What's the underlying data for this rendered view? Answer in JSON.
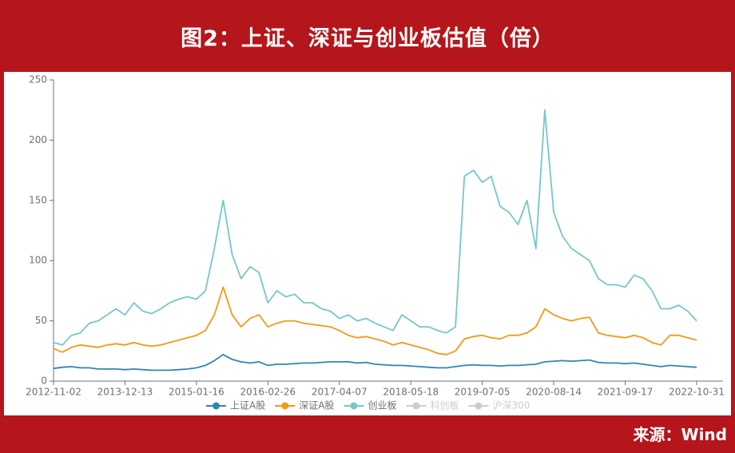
{
  "chart_data": {
    "type": "line",
    "title": "图2：上证、深证与创业板估值（倍）",
    "source": "来源：Wind",
    "categories": [
      "2012-11-02",
      null,
      null,
      null,
      null,
      null,
      null,
      null,
      "2013-12-13",
      null,
      null,
      null,
      null,
      null,
      null,
      null,
      "2015-01-16",
      null,
      null,
      null,
      null,
      null,
      null,
      null,
      "2016-02-26",
      null,
      null,
      null,
      null,
      null,
      null,
      null,
      "2017-04-07",
      null,
      null,
      null,
      null,
      null,
      null,
      null,
      "2018-05-18",
      null,
      null,
      null,
      null,
      null,
      null,
      null,
      "2019-07-05",
      null,
      null,
      null,
      null,
      null,
      null,
      null,
      "2020-08-14",
      null,
      null,
      null,
      null,
      null,
      null,
      null,
      "2021-09-17",
      null,
      null,
      null,
      null,
      null,
      null,
      null,
      "2022-10-31"
    ],
    "series": [
      {
        "name": "上证A股",
        "color": "#2f86b4",
        "values": [
          10.5,
          11.5,
          12,
          11,
          11,
          10,
          10,
          10,
          9.5,
          10,
          9.5,
          9,
          9,
          9,
          9.5,
          10,
          11,
          13,
          17,
          22,
          18,
          16,
          15,
          16,
          13,
          14,
          14,
          14.5,
          15,
          15,
          15.5,
          16,
          16,
          16,
          15,
          15.5,
          14,
          13.5,
          13,
          13,
          12.5,
          12,
          11.5,
          11,
          11,
          12,
          13,
          13.5,
          13,
          13,
          12.5,
          13,
          13,
          13.5,
          14,
          16,
          16.5,
          17,
          16.5,
          17,
          17.5,
          15.5,
          15,
          15,
          14.5,
          15,
          14,
          13,
          12,
          13,
          12.5,
          12,
          11.5
        ]
      },
      {
        "name": "深证A股",
        "color": "#f39a16",
        "values": [
          27,
          24,
          28,
          30,
          29,
          28,
          30,
          31,
          30,
          32,
          30,
          29,
          30,
          32,
          34,
          36,
          38,
          42,
          55,
          78,
          55,
          45,
          52,
          55,
          45,
          48,
          50,
          50,
          48,
          47,
          46,
          45,
          42,
          38,
          36,
          37,
          35,
          33,
          30,
          32,
          30,
          28,
          26,
          23,
          22,
          25,
          35,
          37,
          38,
          36,
          35,
          38,
          38,
          40,
          45,
          60,
          55,
          52,
          50,
          52,
          53,
          40,
          38,
          37,
          36,
          38,
          36,
          32,
          30,
          38,
          38,
          36,
          34
        ]
      },
      {
        "name": "创业板",
        "color": "#76c7c8",
        "values": [
          32,
          30,
          38,
          40,
          48,
          50,
          55,
          60,
          55,
          65,
          58,
          56,
          60,
          65,
          68,
          70,
          68,
          75,
          110,
          150,
          105,
          85,
          95,
          90,
          65,
          75,
          70,
          72,
          65,
          65,
          60,
          58,
          52,
          55,
          50,
          52,
          48,
          45,
          42,
          55,
          50,
          45,
          45,
          42,
          40,
          45,
          170,
          175,
          165,
          170,
          145,
          140,
          130,
          150,
          110,
          225,
          140,
          120,
          110,
          105,
          100,
          85,
          80,
          80,
          78,
          88,
          85,
          75,
          60,
          60,
          63,
          58,
          50
        ]
      }
    ],
    "inactive_legend": [
      "科创板",
      "沪深300"
    ],
    "ylim": [
      0,
      250
    ],
    "yticks": [
      0,
      50,
      100,
      150,
      200,
      250
    ]
  }
}
